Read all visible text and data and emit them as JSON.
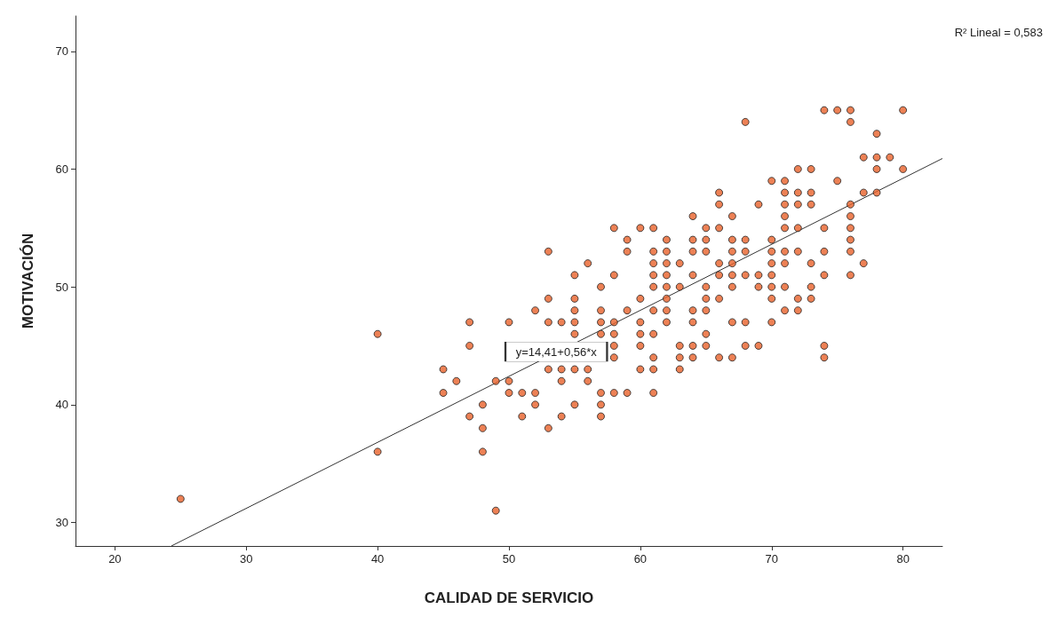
{
  "chart_data": {
    "type": "scatter",
    "xlabel": "CALIDAD DE SERVICIO",
    "ylabel": "MOTIVACIÓN",
    "xlim": [
      17,
      83
    ],
    "ylim": [
      28,
      73
    ],
    "xticks": [
      20,
      30,
      40,
      50,
      60,
      70,
      80
    ],
    "yticks": [
      30,
      40,
      50,
      60,
      70
    ],
    "grid": false,
    "annotations": [
      "R² Lineal = 0,583",
      {
        "text": "y=14,41+0,56*x",
        "x": 53.6,
        "y": 44.5
      }
    ],
    "series": [
      {
        "marker": "circle",
        "color": "#e8622a",
        "x": [
          25,
          40,
          40,
          45,
          45,
          46,
          47,
          47,
          47,
          48,
          48,
          48,
          49,
          49,
          50,
          50,
          50,
          51,
          51,
          52,
          52,
          52,
          53,
          53,
          53,
          53,
          53,
          54,
          54,
          54,
          54,
          55,
          55,
          55,
          55,
          55,
          55,
          55,
          56,
          56,
          56,
          57,
          57,
          57,
          57,
          57,
          57,
          57,
          58,
          58,
          58,
          58,
          58,
          58,
          58,
          59,
          59,
          59,
          59,
          60,
          60,
          60,
          60,
          60,
          60,
          61,
          61,
          61,
          61,
          61,
          61,
          61,
          61,
          61,
          61,
          62,
          62,
          62,
          62,
          62,
          62,
          62,
          62,
          63,
          63,
          63,
          63,
          63,
          64,
          64,
          64,
          64,
          64,
          64,
          64,
          64,
          65,
          65,
          65,
          65,
          65,
          65,
          65,
          65,
          66,
          66,
          66,
          66,
          66,
          66,
          66,
          67,
          67,
          67,
          67,
          67,
          67,
          67,
          67,
          68,
          68,
          68,
          68,
          68,
          68,
          69,
          69,
          69,
          69,
          70,
          70,
          70,
          70,
          70,
          70,
          70,
          70,
          71,
          71,
          71,
          71,
          71,
          71,
          71,
          71,
          71,
          72,
          72,
          72,
          72,
          72,
          72,
          72,
          73,
          73,
          73,
          73,
          73,
          73,
          74,
          74,
          74,
          74,
          74,
          74,
          75,
          75,
          76,
          76,
          76,
          76,
          76,
          76,
          76,
          76,
          77,
          77,
          77,
          78,
          78,
          78,
          78,
          79,
          80,
          80
        ],
        "values": [
          32,
          46,
          36,
          43,
          41,
          42,
          47,
          45,
          39,
          40,
          38,
          36,
          42,
          31,
          47,
          42,
          41,
          41,
          39,
          48,
          41,
          40,
          53,
          49,
          47,
          43,
          38,
          47,
          43,
          42,
          39,
          51,
          49,
          48,
          47,
          46,
          43,
          40,
          52,
          43,
          42,
          50,
          48,
          47,
          46,
          41,
          40,
          39,
          55,
          51,
          47,
          46,
          45,
          44,
          41,
          54,
          53,
          48,
          41,
          55,
          49,
          47,
          46,
          45,
          43,
          55,
          53,
          52,
          51,
          50,
          48,
          46,
          44,
          43,
          41,
          54,
          53,
          52,
          51,
          50,
          49,
          48,
          47,
          52,
          50,
          45,
          44,
          43,
          56,
          54,
          53,
          51,
          48,
          47,
          45,
          44,
          55,
          54,
          53,
          50,
          49,
          48,
          46,
          45,
          58,
          57,
          55,
          52,
          51,
          49,
          44,
          56,
          54,
          53,
          52,
          51,
          50,
          47,
          44,
          64,
          54,
          53,
          51,
          47,
          45,
          57,
          51,
          50,
          45,
          59,
          54,
          53,
          52,
          51,
          50,
          49,
          47,
          59,
          58,
          57,
          56,
          55,
          53,
          52,
          50,
          48,
          60,
          58,
          57,
          55,
          53,
          49,
          48,
          60,
          58,
          57,
          52,
          50,
          49,
          65,
          55,
          53,
          51,
          45,
          44,
          65,
          59,
          65,
          64,
          57,
          56,
          55,
          54,
          53,
          51,
          61,
          58,
          52,
          63,
          61,
          60,
          58,
          61,
          65,
          60
        ]
      },
      {
        "type": "line",
        "marker": "none",
        "color": "#333333",
        "x": [
          24.3,
          83
        ],
        "values": [
          28.0,
          60.9
        ]
      }
    ]
  }
}
